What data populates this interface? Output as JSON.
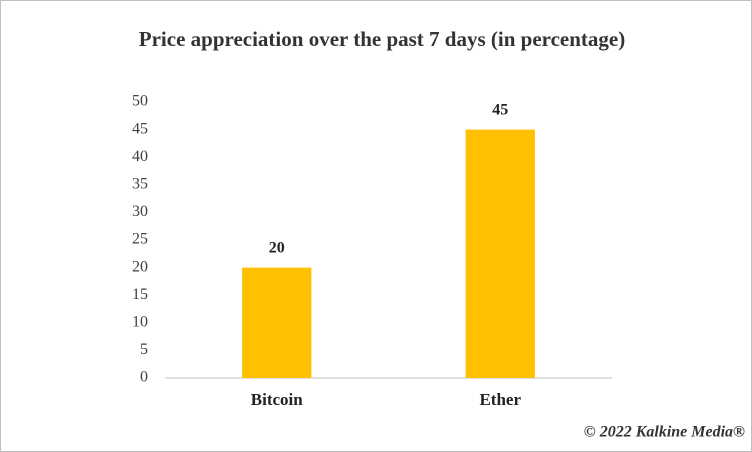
{
  "chart_data": {
    "type": "bar",
    "title": "Price appreciation over the past 7 days (in percentage)",
    "categories": [
      "Bitcoin",
      "Ether"
    ],
    "values": [
      20,
      45
    ],
    "color": "#FFC000",
    "ylim": [
      0,
      50
    ],
    "yticks": [
      0,
      5,
      10,
      15,
      20,
      25,
      30,
      35,
      40,
      45,
      50
    ],
    "grid": false,
    "annotation": "© 2022 Kalkine Media®"
  }
}
